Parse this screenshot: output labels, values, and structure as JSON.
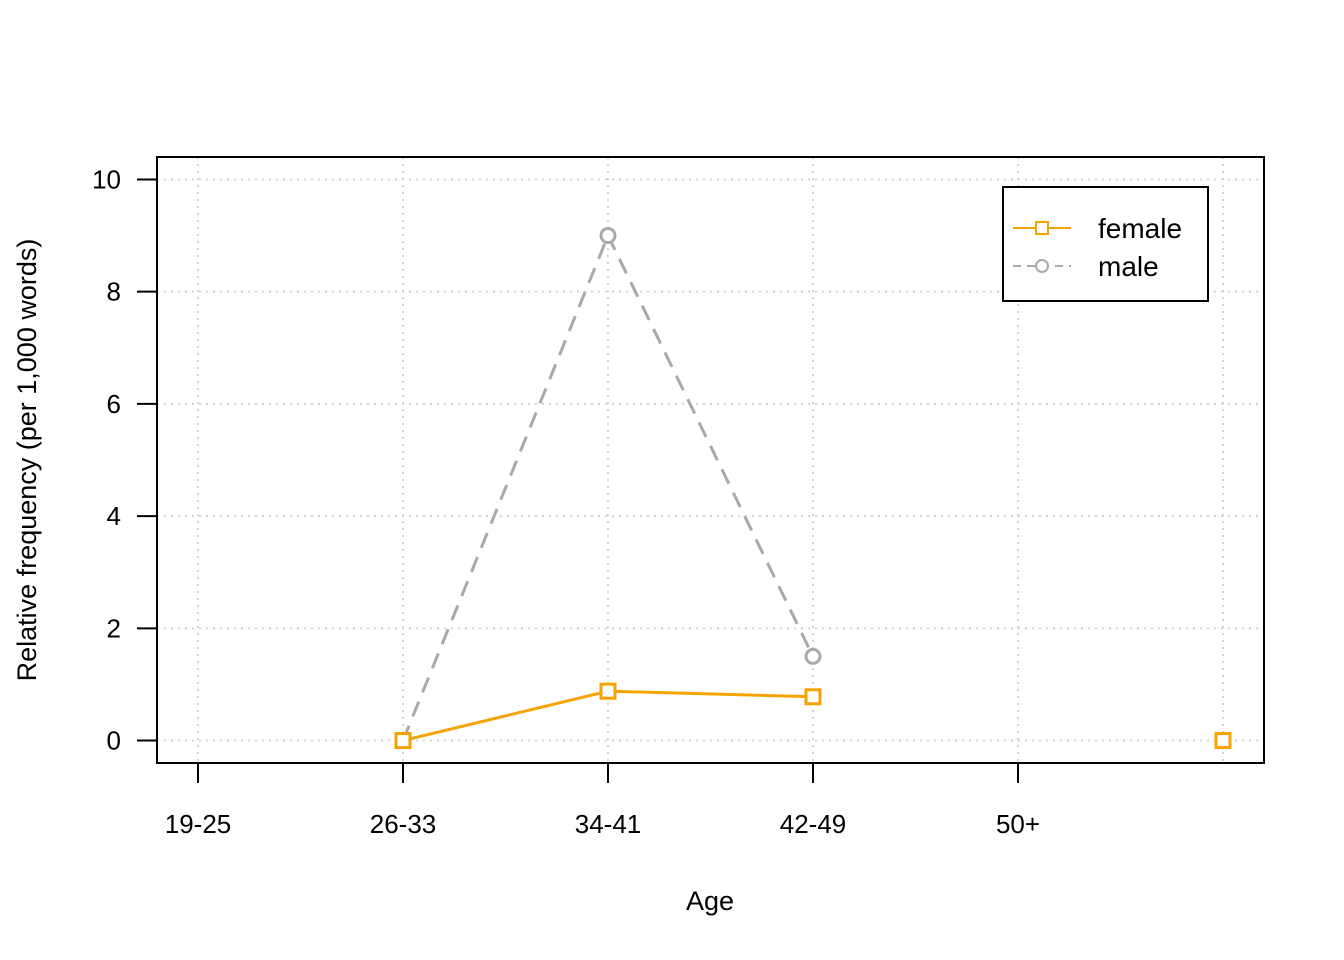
{
  "chart_data": {
    "type": "line",
    "title": "",
    "xlabel": "Age",
    "ylabel": "Relative frequency (per 1,000 words)",
    "x_tick_labels": [
      "19-25",
      "26-33",
      "34-41",
      "42-49",
      "50+"
    ],
    "y_ticks": [
      0,
      2,
      4,
      6,
      8,
      10
    ],
    "xlim": [
      0.8,
      6.2
    ],
    "ylim": [
      -0.4,
      10.4
    ],
    "grid": true,
    "legend_position": "top-right",
    "series": [
      {
        "name": "female",
        "color": "#f5a300",
        "marker": "square",
        "line_style": "solid",
        "x": [
          2,
          3,
          4,
          6
        ],
        "values": [
          0,
          0.88,
          0.78,
          0
        ]
      },
      {
        "name": "male",
        "color": "#a9a9a9",
        "marker": "circle",
        "line_style": "dashed",
        "x": [
          2,
          3,
          4,
          6
        ],
        "values": [
          0,
          9.0,
          1.5,
          0
        ]
      }
    ]
  }
}
